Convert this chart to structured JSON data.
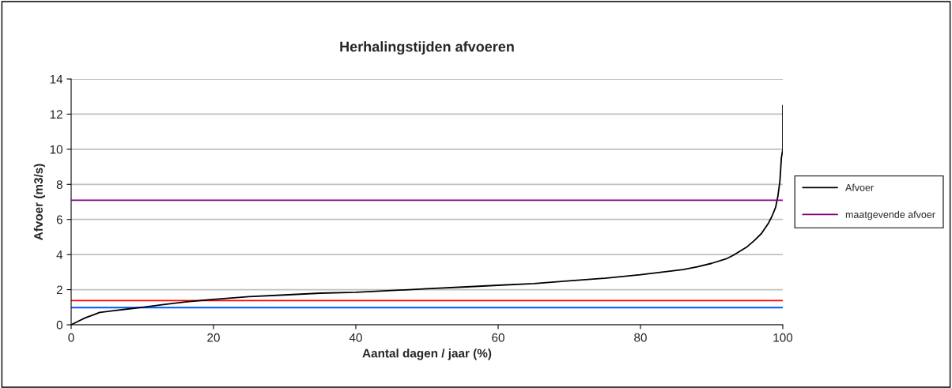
{
  "chart_data": {
    "type": "line",
    "title": "Herhalingstijden afvoeren",
    "xlabel": "Aantal dagen / jaar (%)",
    "ylabel": "Afvoer (m3/s)",
    "xlim": [
      0,
      100
    ],
    "xticks": [
      0,
      20,
      40,
      60,
      80,
      100
    ],
    "ylim": [
      0,
      14
    ],
    "yticks": [
      0,
      2,
      4,
      6,
      8,
      10,
      12,
      14
    ],
    "grid": "y",
    "legend": "right",
    "series": [
      {
        "name": "Afvoer",
        "color": "#000000",
        "x": [
          0,
          1,
          2,
          3,
          4,
          6,
          8,
          10,
          13,
          16,
          20,
          25,
          30,
          35,
          40,
          45,
          50,
          55,
          60,
          65,
          70,
          75,
          80,
          83,
          86,
          88,
          90,
          92,
          93,
          94,
          95,
          96,
          97,
          98,
          98.5,
          99,
          99.3,
          99.6,
          99.8,
          100,
          100
        ],
        "values": [
          0,
          0.2,
          0.4,
          0.55,
          0.7,
          0.8,
          0.9,
          1.0,
          1.15,
          1.3,
          1.45,
          1.6,
          1.7,
          1.8,
          1.85,
          1.95,
          2.05,
          2.15,
          2.25,
          2.35,
          2.5,
          2.65,
          2.85,
          3.0,
          3.15,
          3.3,
          3.5,
          3.75,
          3.95,
          4.2,
          4.45,
          4.8,
          5.2,
          5.8,
          6.2,
          6.7,
          7.3,
          8.2,
          9.5,
          10.0,
          12.5
        ]
      },
      {
        "name": "maatgevende afvoer",
        "color": "#800080",
        "x": [
          0,
          100
        ],
        "values": [
          7.1,
          7.1
        ]
      }
    ],
    "ref_lines": [
      {
        "axis": "y",
        "value": 1.38,
        "color": "#ff0000"
      },
      {
        "axis": "y",
        "value": 0.98,
        "color": "#0055ff"
      }
    ]
  }
}
